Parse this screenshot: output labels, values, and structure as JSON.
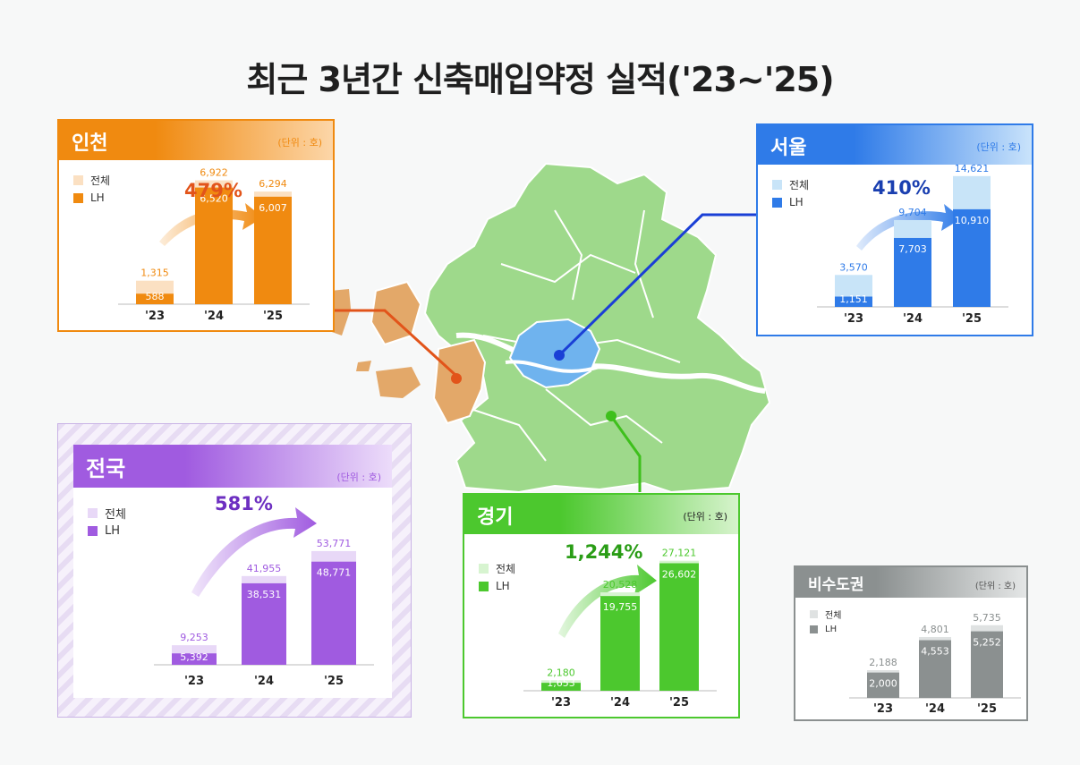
{
  "title": "최근 3년간 신축매입약정 실적('23~'25)",
  "legend": {
    "total": "전체",
    "lh": "LH"
  },
  "unit_label": "(단위 : 호)",
  "colors": {
    "incheon": "#f08a10",
    "seoul": "#2f7be8",
    "national": "#a05be0",
    "gyeonggi": "#4cc82e",
    "non_capital": "#8b9090"
  },
  "chart_data": [
    {
      "type": "bar",
      "region": "인천",
      "title": "인천",
      "growth": "479%",
      "categories": [
        "'23",
        "'24",
        "'25"
      ],
      "series": [
        {
          "name": "전체",
          "values": [
            1315,
            6922,
            6294
          ],
          "labels": [
            "1,315",
            "6,922",
            "6,294"
          ]
        },
        {
          "name": "LH",
          "values": [
            588,
            6520,
            6007
          ],
          "labels": [
            "588",
            "6,520",
            "6,007"
          ]
        }
      ],
      "ylim": [
        0,
        7500
      ]
    },
    {
      "type": "bar",
      "region": "서울",
      "title": "서울",
      "growth": "410%",
      "categories": [
        "'23",
        "'24",
        "'25"
      ],
      "series": [
        {
          "name": "전체",
          "values": [
            3570,
            9704,
            14621
          ],
          "labels": [
            "3,570",
            "9,704",
            "14,621"
          ]
        },
        {
          "name": "LH",
          "values": [
            1151,
            7703,
            10910
          ],
          "labels": [
            "1,151",
            "7,703",
            "10,910"
          ]
        }
      ],
      "ylim": [
        0,
        15000
      ]
    },
    {
      "type": "bar",
      "region": "전국",
      "title": "전국",
      "growth": "581%",
      "categories": [
        "'23",
        "'24",
        "'25"
      ],
      "series": [
        {
          "name": "전체",
          "values": [
            9253,
            41955,
            53771
          ],
          "labels": [
            "9,253",
            "41,955",
            "53,771"
          ]
        },
        {
          "name": "LH",
          "values": [
            5392,
            38531,
            48771
          ],
          "labels": [
            "5,392",
            "38,531",
            "48,771"
          ]
        }
      ],
      "ylim": [
        0,
        55000
      ]
    },
    {
      "type": "bar",
      "region": "경기",
      "title": "경기",
      "growth": "1,244%",
      "categories": [
        "'23",
        "'24",
        "'25"
      ],
      "series": [
        {
          "name": "전체",
          "values": [
            2180,
            20528,
            27121
          ],
          "labels": [
            "2,180",
            "20,528",
            "27,121"
          ]
        },
        {
          "name": "LH",
          "values": [
            1653,
            19755,
            26602
          ],
          "labels": [
            "1,653",
            "19,755",
            "26,602"
          ]
        }
      ],
      "ylim": [
        0,
        28000
      ]
    },
    {
      "type": "bar",
      "region": "비수도권",
      "title": "비수도권",
      "growth": "",
      "categories": [
        "'23",
        "'24",
        "'25"
      ],
      "series": [
        {
          "name": "전체",
          "values": [
            2188,
            4801,
            5735
          ],
          "labels": [
            "2,188",
            "4,801",
            "5,735"
          ]
        },
        {
          "name": "LH",
          "values": [
            2000,
            4553,
            5252
          ],
          "labels": [
            "2,000",
            "4,553",
            "5,252"
          ]
        }
      ],
      "ylim": [
        0,
        6000
      ]
    }
  ]
}
